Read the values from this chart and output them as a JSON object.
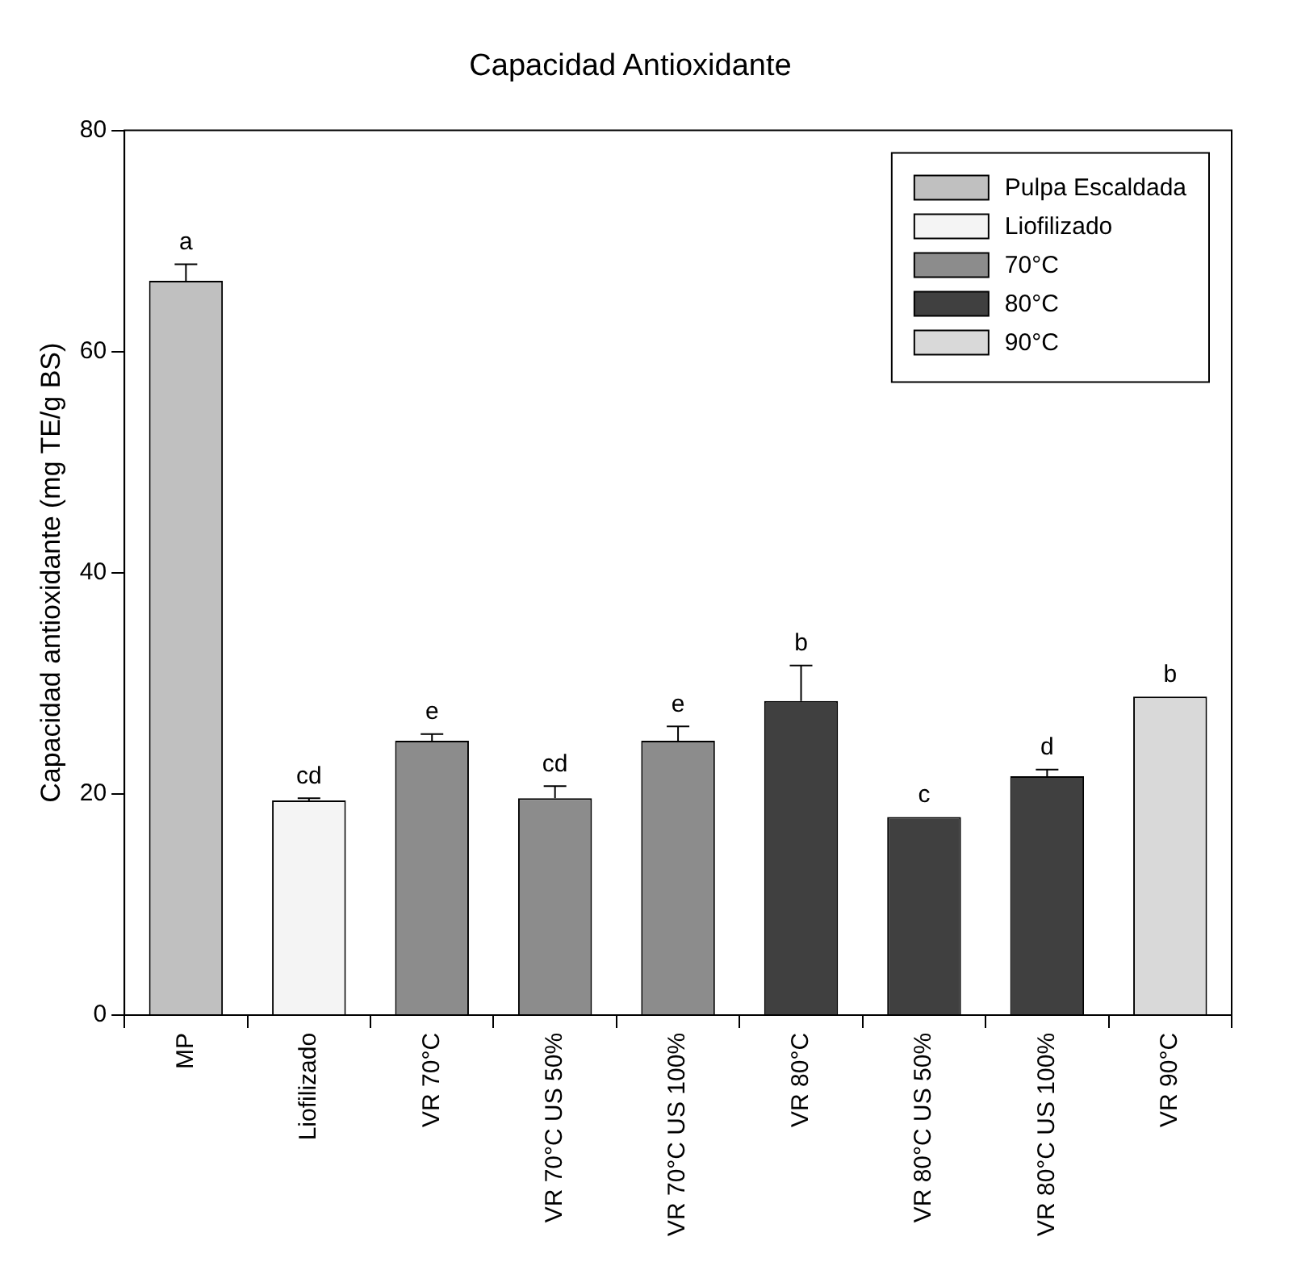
{
  "chart_data": {
    "type": "bar",
    "title": "Capacidad Antioxidante",
    "ylabel": "Capacidad antioxidante (mg TE/g BS)",
    "categories": [
      "MP",
      "Liofilizado",
      "VR 70°C",
      "VR 70°C US 50%",
      "VR 70°C US 100%",
      "VR 80°C",
      "VR 80°C US 50%",
      "VR 80°C US 100%",
      "VR 90°C"
    ],
    "series": [
      {
        "name": "Pulpa Escaldada",
        "color": "#c0c0c0",
        "values": [
          66.4,
          null,
          null,
          null,
          null,
          null,
          null,
          null,
          null
        ],
        "errors": [
          [
            66.4,
            67.9
          ],
          null,
          null,
          null,
          null,
          null,
          null,
          null,
          null
        ],
        "value_labels": [
          "a",
          null,
          null,
          null,
          null,
          null,
          null,
          null,
          null
        ]
      },
      {
        "name": "Liofilizado",
        "color": "#f4f4f4",
        "values": [
          null,
          19.4,
          null,
          null,
          null,
          null,
          null,
          null,
          null
        ],
        "errors": [
          null,
          [
            19.4,
            19.6
          ],
          null,
          null,
          null,
          null,
          null,
          null,
          null
        ],
        "value_labels": [
          null,
          "cd",
          null,
          null,
          null,
          null,
          null,
          null,
          null
        ]
      },
      {
        "name": "70°C",
        "color": "#8c8c8c",
        "values": [
          null,
          null,
          24.8,
          19.6,
          24.8,
          null,
          null,
          null,
          null
        ],
        "errors": [
          null,
          null,
          [
            24.8,
            25.4
          ],
          [
            19.6,
            20.7
          ],
          [
            24.8,
            26.1
          ],
          null,
          null,
          null,
          null
        ],
        "value_labels": [
          null,
          null,
          "e",
          "cd",
          "e",
          null,
          null,
          null,
          null
        ]
      },
      {
        "name": "80°C",
        "color": "#404040",
        "values": [
          null,
          null,
          null,
          null,
          null,
          28.4,
          17.9,
          21.6,
          null
        ],
        "errors": [
          null,
          null,
          null,
          null,
          null,
          [
            28.4,
            31.6
          ],
          null,
          [
            21.6,
            22.2
          ],
          null
        ],
        "value_labels": [
          null,
          null,
          null,
          null,
          null,
          "b",
          "c",
          "d",
          null
        ]
      },
      {
        "name": "90°C",
        "color": "#d9d9d9",
        "values": [
          null,
          null,
          null,
          null,
          null,
          null,
          null,
          null,
          28.8
        ],
        "errors": [
          null,
          null,
          null,
          null,
          null,
          null,
          null,
          null,
          null
        ],
        "value_labels": [
          null,
          null,
          null,
          null,
          null,
          null,
          null,
          null,
          "b"
        ]
      }
    ],
    "ylim": [
      0,
      80
    ],
    "yticks": [
      0,
      20,
      40,
      60,
      80
    ],
    "grid": false,
    "legend": "top right"
  }
}
